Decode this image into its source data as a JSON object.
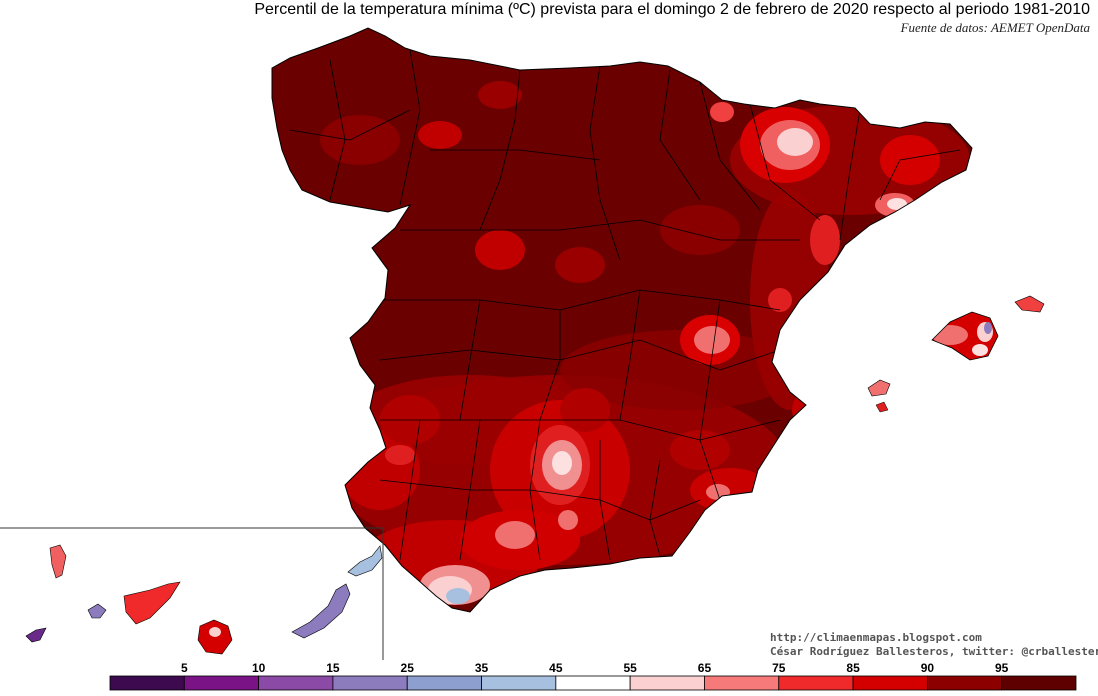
{
  "title": "Percentil de la temperatura mínima (ºC) prevista para el domingo 2 de febrero de 2020 respecto al periodo 1981-2010",
  "source": "Fuente de datos: AEMET OpenData",
  "credits": {
    "blog": "http://climaenmapas.blogspot.com",
    "author": "César Rodríguez Ballesteros, twitter: @crballesteros"
  },
  "legend": {
    "ticks": [
      "5",
      "10",
      "15",
      "25",
      "35",
      "45",
      "55",
      "65",
      "75",
      "85",
      "90",
      "95"
    ],
    "colors": [
      "#3d0a4f",
      "#7a1486",
      "#8a4aa6",
      "#8c7bbd",
      "#8d9fcf",
      "#a7c0e0",
      "#ffffff",
      "#fbd0d0",
      "#f67a7a",
      "#f02a2a",
      "#d40000",
      "#8c0000",
      "#5e0000"
    ]
  },
  "colors": {
    "base_fill": "#6a0000",
    "high": "#a40000",
    "mid": "#e01818",
    "pink": "#f49090",
    "light": "#fde0e0",
    "blue_light": "#a7c0e0",
    "blue_mid": "#8c7bbd",
    "purple": "#6a2a8a",
    "border": "#000000"
  }
}
